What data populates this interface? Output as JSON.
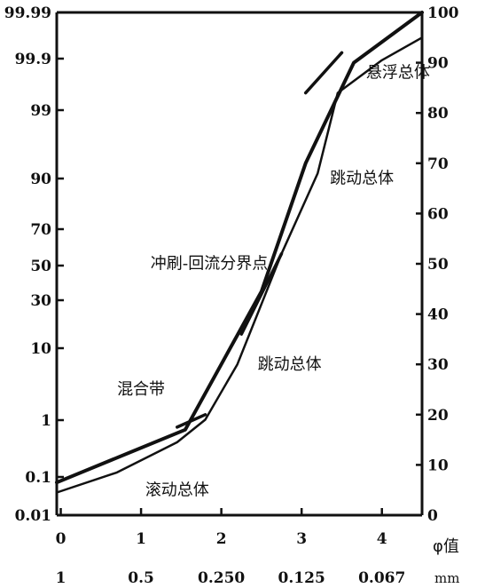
{
  "chart_data": {
    "type": "line",
    "title": "",
    "xlabel": "φ值",
    "x2_unit": "mm",
    "x_ticks": [
      0,
      1,
      2,
      3,
      4
    ],
    "x_mm_ticks": [
      {
        "phi": 0,
        "label": "1"
      },
      {
        "phi": 1,
        "label": "0.5"
      },
      {
        "phi": 2,
        "label": "0.250"
      },
      {
        "phi": 3,
        "label": "0.125"
      },
      {
        "phi": 4,
        "label": "0.067"
      }
    ],
    "xlim": [
      -0.05,
      4.5
    ],
    "y_left_ticks": [
      "99.99",
      "99.9",
      "99",
      "90",
      "70",
      "50",
      "30",
      "10",
      "1",
      "0.1",
      "0.01"
    ],
    "y_left_scale": "probability",
    "y_right_ticks": [
      0,
      10,
      20,
      30,
      40,
      50,
      60,
      70,
      80,
      90,
      100
    ],
    "ylim_right": [
      0,
      100
    ],
    "series": [
      {
        "name": "",
        "style": "thick",
        "x": [
          -0.05,
          1.55,
          2.5,
          3.05,
          3.65,
          4.5
        ],
        "y": [
          6.5,
          17,
          44.5,
          70,
          90,
          100
        ]
      },
      {
        "name": "",
        "style": "thin",
        "x": [
          -0.05,
          0.7,
          1.45,
          1.8,
          2.2,
          2.5,
          2.75,
          3.2,
          3.45,
          4.0,
          4.5
        ],
        "y": [
          4.5,
          8.5,
          14.5,
          19,
          30,
          42,
          52,
          68,
          84,
          90.5,
          95
        ]
      },
      {
        "name": "",
        "style": "segment",
        "x": [
          1.45,
          1.8
        ],
        "y": [
          17.5,
          20
        ]
      },
      {
        "name": "",
        "style": "segment",
        "x": [
          2.25,
          2.75
        ],
        "y": [
          36,
          52
        ]
      },
      {
        "name": "",
        "style": "segment",
        "x": [
          3.05,
          3.5
        ],
        "y": [
          84,
          92
        ]
      }
    ],
    "annotations": [
      {
        "text": "悬浮总体",
        "x": 4.2,
        "y": 87
      },
      {
        "text": "跳动总体",
        "x": 3.75,
        "y": 66
      },
      {
        "text": "冲刷-回流分界点",
        "x": 1.85,
        "y": 49
      },
      {
        "text": "跳动总体",
        "x": 2.85,
        "y": 29
      },
      {
        "text": "混合带",
        "x": 1.0,
        "y": 24
      },
      {
        "text": "滚动总体",
        "x": 1.45,
        "y": 4
      }
    ],
    "grid": false
  }
}
